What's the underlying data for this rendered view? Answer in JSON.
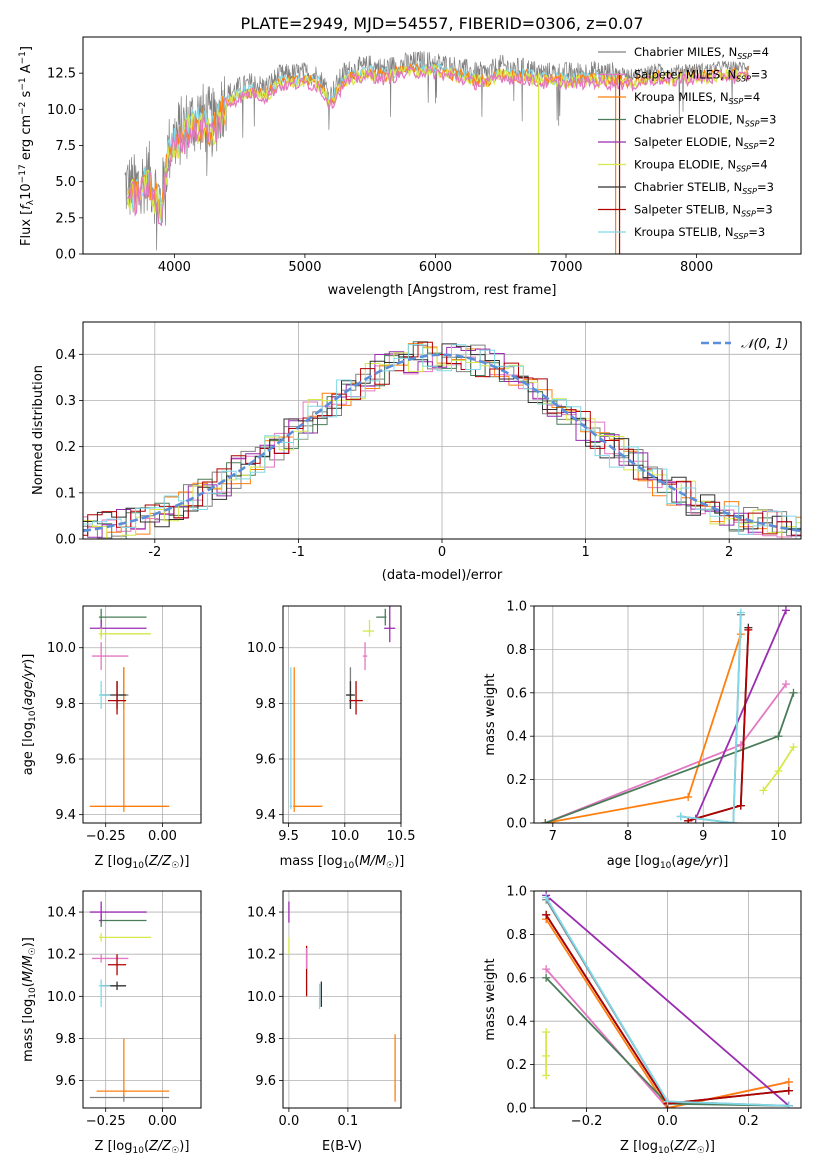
{
  "figure": {
    "title": "PLATE=2949, MJD=54557, FIBERID=0306, z=0.07"
  },
  "colors": {
    "models": [
      "#808080",
      "#e377c2",
      "#ff7f0e",
      "#4a7c59",
      "#9a2cb0",
      "#d6e84a",
      "#303030",
      "#b00000",
      "#80d8e8"
    ],
    "normal_curve": "#5b8fd9",
    "grid": "#b0b0b0"
  },
  "chart_data": [
    {
      "id": "spectrum",
      "type": "line",
      "xlabel": "wavelength [Angstrom, rest frame]",
      "ylabel": "Flux [f_λ10^-17 erg cm^-2 s^-1 A^-1]",
      "xlim": [
        3300,
        8800
      ],
      "ylim": [
        0,
        15
      ],
      "xticks": [
        4000,
        5000,
        6000,
        7000,
        8000
      ],
      "yticks": [
        0.0,
        2.5,
        5.0,
        7.5,
        10.0,
        12.5
      ],
      "grid": false,
      "legend_position": "right",
      "legend": [
        {
          "label": "Chabrier MILES, N",
          "ssp": "4"
        },
        {
          "label": "Salpeter MILES, N",
          "ssp": "3"
        },
        {
          "label": "Kroupa MILES, N",
          "ssp": "4"
        },
        {
          "label": "Chabrier ELODIE, N",
          "ssp": "3"
        },
        {
          "label": "Salpeter ELODIE, N",
          "ssp": "2"
        },
        {
          "label": "Kroupa ELODIE, N",
          "ssp": "4"
        },
        {
          "label": "Chabrier STELIB, N",
          "ssp": "3"
        },
        {
          "label": "Salpeter STELIB, N",
          "ssp": "3"
        },
        {
          "label": "Kroupa STELIB, N",
          "ssp": "3"
        }
      ],
      "envelope": {
        "x": [
          3620,
          3700,
          3800,
          3900,
          3950,
          4000,
          4100,
          4200,
          4300,
          4400,
          4500,
          4600,
          4700,
          4800,
          4900,
          5000,
          5100,
          5200,
          5300,
          5400,
          5500,
          5600,
          5700,
          5800,
          5900,
          6000,
          6100,
          6200,
          6300,
          6400,
          6500,
          6600,
          6700,
          6800,
          6900,
          7000,
          7100,
          7200,
          7300,
          7400,
          7500,
          7600,
          7700,
          7800,
          7900,
          8000,
          8100,
          8200,
          8300,
          8400
        ],
        "y": [
          4.8,
          4.5,
          5.5,
          3.5,
          7.0,
          8.0,
          9.0,
          9.5,
          9.0,
          11.0,
          11.5,
          11.8,
          11.5,
          12.3,
          12.4,
          12.5,
          12.3,
          11.0,
          12.5,
          12.8,
          13.0,
          12.8,
          13.0,
          13.2,
          13.3,
          13.2,
          13.0,
          12.8,
          12.5,
          12.5,
          13.0,
          12.8,
          12.8,
          12.5,
          12.5,
          12.5,
          12.5,
          12.6,
          12.5,
          12.5,
          12.4,
          12.6,
          12.8,
          12.6,
          12.8,
          12.8,
          12.8,
          13.0,
          12.9,
          13.0
        ]
      }
    },
    {
      "id": "residuals",
      "type": "line",
      "xlabel": "(data-model)/error",
      "ylabel": "Normed distribution",
      "xlim": [
        -2.5,
        2.5
      ],
      "ylim": [
        0,
        0.47
      ],
      "xticks": [
        -2,
        -1,
        0,
        1,
        2
      ],
      "yticks": [
        0.0,
        0.1,
        0.2,
        0.3,
        0.4
      ],
      "grid": true,
      "legend_position": "top-right",
      "legend": [
        {
          "label": "𝒩(0, 1)"
        }
      ],
      "normal": {
        "mean": 0,
        "sigma": 1
      }
    },
    {
      "id": "age-vs-Z",
      "type": "scatter",
      "xlabel": "Z [log10(Z/Z☉)]",
      "ylabel": "age  [log10(age/yr)]",
      "xlim": [
        -0.35,
        0.17
      ],
      "ylim": [
        9.37,
        10.15
      ],
      "xticks": [
        -0.25,
        0.0
      ],
      "xticklabels": [
        "−0.25",
        "0.00"
      ],
      "yticks": [
        9.4,
        9.6,
        9.8,
        10.0
      ],
      "grid": true,
      "points": [
        {
          "x": -0.17,
          "y": 9.83,
          "xerr": [
            0.02,
            0.02
          ],
          "yerr": [
            0.05,
            0.1
          ],
          "c": 0
        },
        {
          "x": -0.27,
          "y": 9.97,
          "xerr": [
            0.04,
            0.12
          ],
          "yerr": [
            0.05,
            0.05
          ],
          "c": 1
        },
        {
          "x": -0.17,
          "y": 9.43,
          "xerr": [
            0.15,
            0.2
          ],
          "yerr": [
            0.02,
            0.5
          ],
          "c": 2
        },
        {
          "x": -0.27,
          "y": 10.11,
          "xerr": [
            0.01,
            0.2
          ],
          "yerr": [
            0.03,
            0.03
          ],
          "c": 3
        },
        {
          "x": -0.27,
          "y": 10.07,
          "xerr": [
            0.05,
            0.2
          ],
          "yerr": [
            0.03,
            0.03
          ],
          "c": 4
        },
        {
          "x": -0.27,
          "y": 10.05,
          "xerr": [
            0.01,
            0.22
          ],
          "yerr": [
            0.02,
            0.02
          ],
          "c": 5
        },
        {
          "x": -0.2,
          "y": 9.83,
          "xerr": [
            0.07,
            0.04
          ],
          "yerr": [
            0.05,
            0.05
          ],
          "c": 6
        },
        {
          "x": -0.2,
          "y": 9.81,
          "xerr": [
            0.04,
            0.04
          ],
          "yerr": [
            0.05,
            0.07
          ],
          "c": 7
        },
        {
          "x": -0.27,
          "y": 9.83,
          "xerr": [
            0.01,
            0.04
          ],
          "yerr": [
            0.05,
            0.05
          ],
          "c": 8
        }
      ]
    },
    {
      "id": "age-vs-mass",
      "type": "scatter",
      "xlabel": "mass [log10(M/M☉)]",
      "ylabel": "",
      "xlim": [
        9.45,
        10.5
      ],
      "ylim": [
        9.37,
        10.15
      ],
      "xticks": [
        9.5,
        10.0,
        10.5
      ],
      "xticklabels": [
        "9.5",
        "10.0",
        "10.5"
      ],
      "yticks": [
        9.4,
        9.6,
        9.8,
        10.0
      ],
      "grid": true,
      "points": [
        {
          "x": 10.05,
          "y": 9.83,
          "xerr": [
            0.02,
            0.02
          ],
          "yerr": [
            0.05,
            0.1
          ],
          "c": 0
        },
        {
          "x": 10.18,
          "y": 9.97,
          "xerr": [
            0.02,
            0.02
          ],
          "yerr": [
            0.05,
            0.05
          ],
          "c": 1
        },
        {
          "x": 9.55,
          "y": 9.43,
          "xerr": [
            0.01,
            0.25
          ],
          "yerr": [
            0.02,
            0.5
          ],
          "c": 2
        },
        {
          "x": 10.36,
          "y": 10.11,
          "xerr": [
            0.08,
            0.01
          ],
          "yerr": [
            0.03,
            0.03
          ],
          "c": 3
        },
        {
          "x": 10.4,
          "y": 10.07,
          "xerr": [
            0.05,
            0.05
          ],
          "yerr": [
            0.05,
            0.17
          ],
          "c": 4
        },
        {
          "x": 10.22,
          "y": 10.06,
          "xerr": [
            0.06,
            0.04
          ],
          "yerr": [
            0.02,
            0.04
          ],
          "c": 5
        },
        {
          "x": 10.05,
          "y": 9.83,
          "xerr": [
            0.04,
            0.04
          ],
          "yerr": [
            0.05,
            0.05
          ],
          "c": 6
        },
        {
          "x": 10.1,
          "y": 9.81,
          "xerr": [
            0.06,
            0.06
          ],
          "yerr": [
            0.05,
            0.07
          ],
          "c": 7
        },
        {
          "x": 9.52,
          "y": 9.43,
          "xerr": [
            0.01,
            0.01
          ],
          "yerr": [
            0.01,
            0.5
          ],
          "c": 8
        }
      ]
    },
    {
      "id": "weight-vs-age",
      "type": "line",
      "xlabel": "age  [log10(age/yr)]",
      "ylabel": "mass weight",
      "xlim": [
        6.75,
        10.3
      ],
      "ylim": [
        0,
        1.0
      ],
      "xticks": [
        7,
        8,
        9,
        10
      ],
      "yticks": [
        0.0,
        0.2,
        0.4,
        0.6,
        0.8,
        1.0
      ],
      "grid": true,
      "series": [
        {
          "c": 0,
          "x": [
            8.7,
            9.4,
            9.5
          ],
          "y": [
            0.03,
            0.0,
            0.96
          ]
        },
        {
          "c": 1,
          "x": [
            6.9,
            9.5,
            10.1
          ],
          "y": [
            0.0,
            0.36,
            0.64
          ]
        },
        {
          "c": 2,
          "x": [
            6.9,
            8.8,
            9.5
          ],
          "y": [
            0.0,
            0.12,
            0.87
          ]
        },
        {
          "c": 3,
          "x": [
            6.9,
            10.0,
            10.2
          ],
          "y": [
            0.0,
            0.4,
            0.6
          ]
        },
        {
          "c": 4,
          "x": [
            8.9,
            10.1
          ],
          "y": [
            0.02,
            0.98
          ]
        },
        {
          "c": 5,
          "x": [
            9.8,
            10.0,
            10.2
          ],
          "y": [
            0.15,
            0.24,
            0.35
          ]
        },
        {
          "c": 6,
          "x": [
            8.8,
            9.5,
            9.6
          ],
          "y": [
            0.01,
            0.08,
            0.9
          ]
        },
        {
          "c": 7,
          "x": [
            8.8,
            9.5,
            9.6
          ],
          "y": [
            0.01,
            0.08,
            0.89
          ]
        },
        {
          "c": 8,
          "x": [
            8.7,
            9.4,
            9.5
          ],
          "y": [
            0.03,
            0.0,
            0.97
          ]
        }
      ]
    },
    {
      "id": "mass-vs-Z",
      "type": "scatter",
      "xlabel": "Z [log10(Z/Z☉)]",
      "ylabel": "mass [log10(M/M☉)]",
      "xlim": [
        -0.35,
        0.17
      ],
      "ylim": [
        9.47,
        10.5
      ],
      "xticks": [
        -0.25,
        0.0
      ],
      "xticklabels": [
        "−0.25",
        "0.00"
      ],
      "yticks": [
        9.6,
        9.8,
        10.0,
        10.2,
        10.4
      ],
      "grid": true,
      "points": [
        {
          "x": -0.17,
          "y": 9.52,
          "xerr": [
            0.15,
            0.2
          ],
          "yerr": [
            0.02,
            0.02
          ],
          "c": 0
        },
        {
          "x": -0.27,
          "y": 10.18,
          "xerr": [
            0.04,
            0.12
          ],
          "yerr": [
            0.02,
            0.02
          ],
          "c": 1
        },
        {
          "x": -0.17,
          "y": 9.55,
          "xerr": [
            0.12,
            0.2
          ],
          "yerr": [
            0.02,
            0.25
          ],
          "c": 2
        },
        {
          "x": -0.27,
          "y": 10.36,
          "xerr": [
            0.01,
            0.2
          ],
          "yerr": [
            0.03,
            0.03
          ],
          "c": 3
        },
        {
          "x": -0.27,
          "y": 10.4,
          "xerr": [
            0.05,
            0.2
          ],
          "yerr": [
            0.05,
            0.05
          ],
          "c": 4
        },
        {
          "x": -0.27,
          "y": 10.28,
          "xerr": [
            0.01,
            0.22
          ],
          "yerr": [
            0.02,
            0.02
          ],
          "c": 5
        },
        {
          "x": -0.2,
          "y": 10.05,
          "xerr": [
            0.07,
            0.04
          ],
          "yerr": [
            0.02,
            0.02
          ],
          "c": 6
        },
        {
          "x": -0.2,
          "y": 10.15,
          "xerr": [
            0.04,
            0.04
          ],
          "yerr": [
            0.05,
            0.05
          ],
          "c": 7
        },
        {
          "x": -0.27,
          "y": 10.05,
          "xerr": [
            0.01,
            0.04
          ],
          "yerr": [
            0.1,
            0.03
          ],
          "c": 8
        }
      ]
    },
    {
      "id": "mass-vs-EBV",
      "type": "scatter",
      "xlabel": "E(B-V)",
      "ylabel": "",
      "xlim": [
        -0.01,
        0.19
      ],
      "ylim": [
        9.47,
        10.5
      ],
      "xticks": [
        0.0,
        0.1
      ],
      "xticklabels": [
        "0.0",
        "0.1"
      ],
      "yticks": [
        9.6,
        9.8,
        10.0,
        10.2,
        10.4
      ],
      "grid": true,
      "points": [
        {
          "x": 0.055,
          "y": 10.01,
          "xerr": [
            0,
            0
          ],
          "yerr": [
            0.06,
            0.06
          ],
          "c": 6
        },
        {
          "x": 0.052,
          "y": 10.0,
          "xerr": [
            0,
            0
          ],
          "yerr": [
            0.06,
            0.06
          ],
          "c": 8
        },
        {
          "x": 0.03,
          "y": 10.12,
          "xerr": [
            0,
            0
          ],
          "yerr": [
            0.12,
            0.12
          ],
          "c": 7
        },
        {
          "x": 0.03,
          "y": 10.18,
          "xerr": [
            0,
            0
          ],
          "yerr": [
            0.05,
            0.05
          ],
          "c": 1
        },
        {
          "x": 0.0,
          "y": 10.4,
          "xerr": [
            0,
            0
          ],
          "yerr": [
            0.05,
            0.05
          ],
          "c": 4
        },
        {
          "x": 0.0,
          "y": 10.24,
          "xerr": [
            0,
            0
          ],
          "yerr": [
            0.04,
            0.04
          ],
          "c": 5
        },
        {
          "x": 0.18,
          "y": 9.66,
          "xerr": [
            0,
            0
          ],
          "yerr": [
            0.16,
            0.16
          ],
          "c": 2
        }
      ]
    },
    {
      "id": "weight-vs-Z",
      "type": "line",
      "xlabel": "Z [log10(Z/Z☉)]",
      "ylabel": "mass weight",
      "xlim": [
        -0.33,
        0.33
      ],
      "ylim": [
        0,
        1.0
      ],
      "xticks": [
        -0.2,
        0.0,
        0.2
      ],
      "xticklabels": [
        "−0.2",
        "0.0",
        "0.2"
      ],
      "yticks": [
        0.0,
        0.2,
        0.4,
        0.6,
        0.8,
        1.0
      ],
      "grid": true,
      "series": [
        {
          "c": 0,
          "x": [
            -0.3,
            0.0,
            0.3
          ],
          "y": [
            0.96,
            0.03,
            0.01
          ]
        },
        {
          "c": 1,
          "x": [
            -0.3,
            0.0,
            0.3
          ],
          "y": [
            0.64,
            0.0,
            0.12
          ]
        },
        {
          "c": 2,
          "x": [
            -0.3,
            0.0,
            0.3
          ],
          "y": [
            0.87,
            0.0,
            0.12
          ]
        },
        {
          "c": 3,
          "x": [
            -0.3,
            0.0,
            0.3
          ],
          "y": [
            0.6,
            0.02,
            0.01
          ]
        },
        {
          "c": 4,
          "x": [
            -0.3,
            0.3
          ],
          "y": [
            0.98,
            0.01
          ]
        },
        {
          "c": 5,
          "x": [
            -0.3,
            -0.3,
            -0.3
          ],
          "y": [
            0.15,
            0.24,
            0.35
          ]
        },
        {
          "c": 6,
          "x": [
            -0.3,
            0.0,
            0.3
          ],
          "y": [
            0.89,
            0.02,
            0.08
          ]
        },
        {
          "c": 7,
          "x": [
            -0.3,
            0.0,
            0.3
          ],
          "y": [
            0.89,
            0.02,
            0.08
          ]
        },
        {
          "c": 8,
          "x": [
            -0.3,
            0.0,
            0.3
          ],
          "y": [
            0.97,
            0.03,
            0.01
          ]
        }
      ]
    }
  ]
}
